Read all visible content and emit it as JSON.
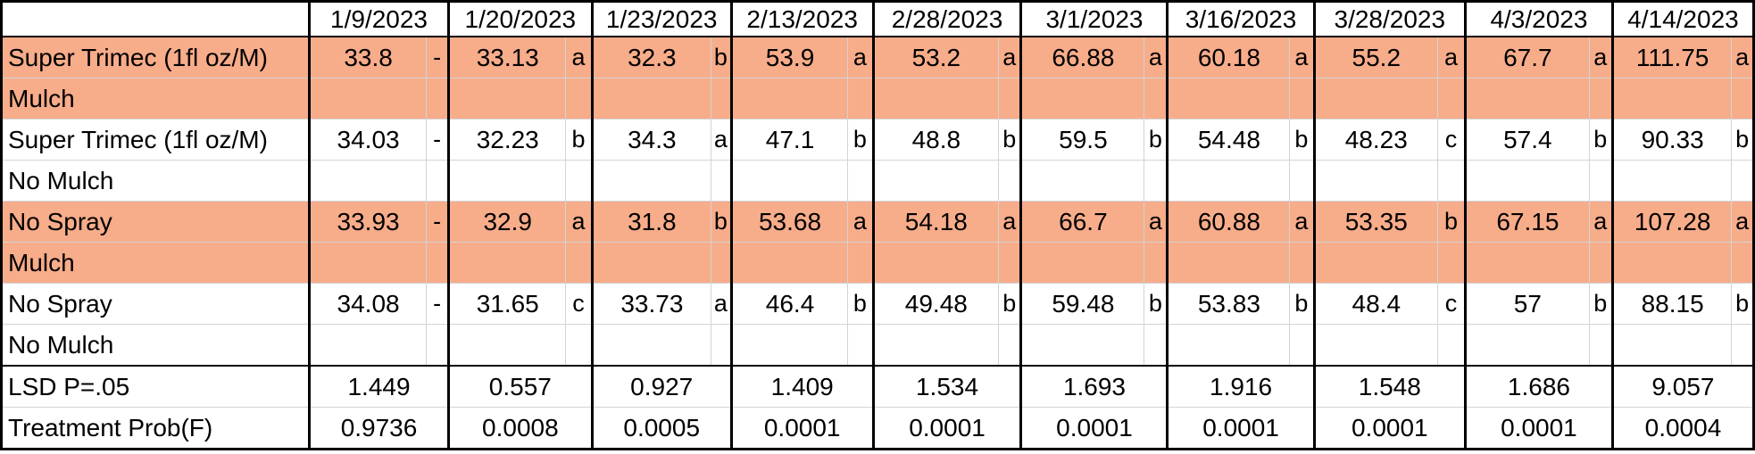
{
  "dates": [
    "1/9/2023",
    "1/20/2023",
    "1/23/2023",
    "2/13/2023",
    "2/28/2023",
    "3/1/2023",
    "3/16/2023",
    "3/28/2023",
    "4/3/2023",
    "4/14/2023"
  ],
  "treatments": [
    {
      "line1": "Super Trimec (1fl oz/M)",
      "line2": "Mulch",
      "shaded": true,
      "values": [
        "33.8",
        "33.13",
        "32.3",
        "53.9",
        "53.2",
        "66.88",
        "60.18",
        "55.2",
        "67.7",
        "111.75"
      ],
      "letters": [
        "-",
        "a",
        "b",
        "a",
        "a",
        "a",
        "a",
        "a",
        "a",
        "a"
      ]
    },
    {
      "line1": "Super Trimec (1fl oz/M)",
      "line2": "No Mulch",
      "shaded": false,
      "values": [
        "34.03",
        "32.23",
        "34.3",
        "47.1",
        "48.8",
        "59.5",
        "54.48",
        "48.23",
        "57.4",
        "90.33"
      ],
      "letters": [
        "-",
        "b",
        "a",
        "b",
        "b",
        "b",
        "b",
        "c",
        "b",
        "b"
      ]
    },
    {
      "line1": "No Spray",
      "line2": "Mulch",
      "shaded": true,
      "values": [
        "33.93",
        "32.9",
        "31.8",
        "53.68",
        "54.18",
        "66.7",
        "60.88",
        "53.35",
        "67.15",
        "107.28"
      ],
      "letters": [
        "-",
        "a",
        "b",
        "a",
        "a",
        "a",
        "a",
        "b",
        "a",
        "a"
      ]
    },
    {
      "line1": "No Spray",
      "line2": "No Mulch",
      "shaded": false,
      "values": [
        "34.08",
        "31.65",
        "33.73",
        "46.4",
        "49.48",
        "59.48",
        "53.83",
        "48.4",
        "57",
        "88.15"
      ],
      "letters": [
        "-",
        "c",
        "a",
        "b",
        "b",
        "b",
        "b",
        "c",
        "b",
        "b"
      ]
    }
  ],
  "stats": [
    {
      "label": "LSD P=.05",
      "values": [
        "1.449",
        "0.557",
        "0.927",
        "1.409",
        "1.534",
        "1.693",
        "1.916",
        "1.548",
        "1.686",
        "9.057"
      ]
    },
    {
      "label": "Treatment Prob(F)",
      "values": [
        "0.9736",
        "0.0008",
        "0.0005",
        "0.0001",
        "0.0001",
        "0.0001",
        "0.0001",
        "0.0001",
        "0.0001",
        "0.0004"
      ]
    }
  ],
  "colors": {
    "shade": "#f7ac8a",
    "border": "#000000",
    "grid": "#d4d4d4"
  }
}
